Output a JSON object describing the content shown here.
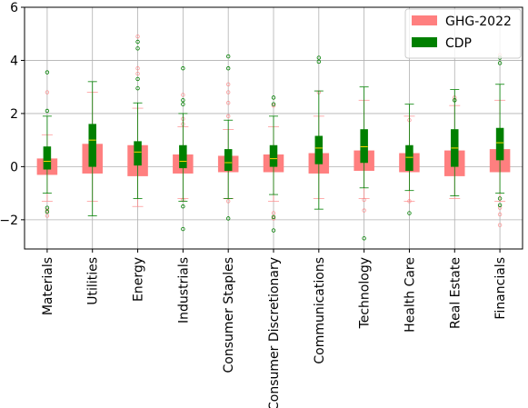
{
  "chart_data": {
    "type": "boxplot",
    "title": "",
    "xlabel": "",
    "ylabel": "",
    "ylim": [
      -3.1,
      6.0
    ],
    "yticks": [
      -2,
      0,
      2,
      4,
      6
    ],
    "grid": true,
    "legend_position": "top-right",
    "categories": [
      "Materials",
      "Utilities",
      "Energy",
      "Industrials",
      "Consumer Staples",
      "Consumer Discretionary",
      "Communications",
      "Technology",
      "Health Care",
      "Real Estate",
      "Financials"
    ],
    "series": [
      {
        "name": "GHG-2022",
        "color": "#ff7f7f",
        "boxes": [
          {
            "q1": -0.3,
            "median": 0.0,
            "q3": 0.3,
            "whisker_low": -1.3,
            "whisker_high": 1.2,
            "outliers": [
              2.8,
              -1.65,
              -1.85
            ]
          },
          {
            "q1": -0.25,
            "median": 0.35,
            "q3": 0.85,
            "whisker_low": -1.3,
            "whisker_high": 2.8,
            "outliers": []
          },
          {
            "q1": -0.35,
            "median": 0.1,
            "q3": 0.8,
            "whisker_low": -1.5,
            "whisker_high": 2.2,
            "outliers": [
              4.9,
              3.7,
              3.5
            ]
          },
          {
            "q1": -0.25,
            "median": 0.0,
            "q3": 0.45,
            "whisker_low": -1.2,
            "whisker_high": 1.5,
            "outliers": [
              2.7,
              1.8,
              1.6,
              -1.25
            ]
          },
          {
            "q1": -0.2,
            "median": 0.0,
            "q3": 0.4,
            "whisker_low": -1.2,
            "whisker_high": 1.4,
            "outliers": [
              3.1,
              2.8,
              2.4,
              1.9,
              -1.3
            ]
          },
          {
            "q1": -0.2,
            "median": 0.0,
            "q3": 0.45,
            "whisker_low": -1.3,
            "whisker_high": 1.5,
            "outliers": [
              2.3,
              -1.95,
              -1.75
            ]
          },
          {
            "q1": -0.25,
            "median": 0.0,
            "q3": 0.5,
            "whisker_low": -1.2,
            "whisker_high": 1.9,
            "outliers": [
              2.8
            ]
          },
          {
            "q1": -0.15,
            "median": 0.0,
            "q3": 0.6,
            "whisker_low": -1.2,
            "whisker_high": 2.5,
            "outliers": [
              -1.65,
              -1.25
            ]
          },
          {
            "q1": -0.2,
            "median": 0.0,
            "q3": 0.5,
            "whisker_low": -1.3,
            "whisker_high": 1.9,
            "outliers": [
              1.75,
              -1.3
            ]
          },
          {
            "q1": -0.35,
            "median": 0.0,
            "q3": 0.6,
            "whisker_low": -1.2,
            "whisker_high": 2.3,
            "outliers": [
              2.6,
              2.5
            ]
          },
          {
            "q1": -0.2,
            "median": 0.0,
            "q3": 0.65,
            "whisker_low": -1.3,
            "whisker_high": 2.5,
            "outliers": [
              4.2,
              -1.8,
              -2.2,
              -1.55
            ]
          }
        ]
      },
      {
        "name": "CDP",
        "color": "#008000",
        "boxes": [
          {
            "q1": -0.1,
            "median": 0.2,
            "q3": 0.75,
            "whisker_low": -1.0,
            "whisker_high": 1.9,
            "outliers": [
              3.55,
              2.1,
              -1.55,
              -1.7
            ]
          },
          {
            "q1": 0.0,
            "median": 1.0,
            "q3": 1.6,
            "whisker_low": -1.85,
            "whisker_high": 3.2,
            "outliers": []
          },
          {
            "q1": 0.05,
            "median": 0.55,
            "q3": 0.95,
            "whisker_low": -1.2,
            "whisker_high": 2.4,
            "outliers": [
              4.7,
              4.45,
              3.3,
              2.95
            ]
          },
          {
            "q1": -0.05,
            "median": 0.2,
            "q3": 0.8,
            "whisker_low": -1.3,
            "whisker_high": 2.0,
            "outliers": [
              3.7,
              2.5,
              2.35,
              -1.5,
              -2.35
            ]
          },
          {
            "q1": -0.15,
            "median": 0.15,
            "q3": 0.65,
            "whisker_low": -1.2,
            "whisker_high": 1.75,
            "outliers": [
              4.15,
              3.7,
              -1.95
            ]
          },
          {
            "q1": 0.0,
            "median": 0.3,
            "q3": 0.8,
            "whisker_low": -1.05,
            "whisker_high": 1.9,
            "outliers": [
              2.6,
              2.35,
              -1.9,
              -2.4
            ]
          },
          {
            "q1": 0.1,
            "median": 0.7,
            "q3": 1.15,
            "whisker_low": -1.6,
            "whisker_high": 2.85,
            "outliers": [
              4.1,
              3.95
            ]
          },
          {
            "q1": 0.15,
            "median": 0.75,
            "q3": 1.4,
            "whisker_low": -0.8,
            "whisker_high": 3.0,
            "outliers": [
              -2.7
            ]
          },
          {
            "q1": -0.15,
            "median": 0.35,
            "q3": 0.8,
            "whisker_low": -0.9,
            "whisker_high": 2.35,
            "outliers": [
              -1.75
            ]
          },
          {
            "q1": 0.0,
            "median": 0.7,
            "q3": 1.4,
            "whisker_low": -1.1,
            "whisker_high": 2.9,
            "outliers": [
              2.5
            ]
          },
          {
            "q1": 0.25,
            "median": 0.9,
            "q3": 1.45,
            "whisker_low": -1.0,
            "whisker_high": 3.1,
            "outliers": [
              4.1,
              3.9,
              -1.45,
              -1.2
            ]
          }
        ]
      }
    ]
  }
}
